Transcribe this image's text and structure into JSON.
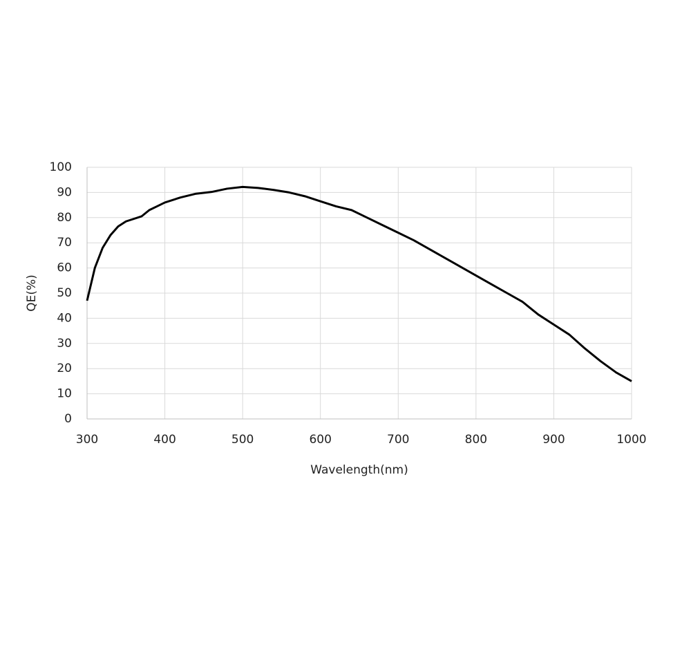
{
  "chart_data": {
    "type": "line",
    "xlabel": "Wavelength(nm)",
    "ylabel": "QE(%)",
    "x": [
      300,
      310,
      320,
      330,
      340,
      350,
      360,
      370,
      380,
      390,
      400,
      420,
      440,
      460,
      480,
      500,
      520,
      540,
      560,
      580,
      600,
      620,
      640,
      660,
      680,
      700,
      720,
      740,
      760,
      780,
      800,
      820,
      840,
      860,
      880,
      900,
      920,
      940,
      960,
      980,
      1000
    ],
    "series": [
      {
        "color": "#000000",
        "values": [
          47,
          60,
          68,
          73,
          76.5,
          78.5,
          79.5,
          80.5,
          83,
          84.5,
          86,
          88,
          89.5,
          90.2,
          91.5,
          92.2,
          91.8,
          91,
          90,
          88.5,
          86.5,
          84.5,
          83,
          80,
          77,
          74,
          71,
          67.5,
          64,
          60.5,
          57,
          53.5,
          50,
          46.5,
          41.5,
          37.5,
          33.5,
          28,
          23,
          18.5,
          15
        ]
      }
    ],
    "xlim": [
      300,
      1000
    ],
    "xticks": [
      300,
      400,
      500,
      600,
      700,
      800,
      900,
      1000
    ],
    "ylim": [
      0,
      100
    ],
    "yticks": [
      0,
      10,
      20,
      30,
      40,
      50,
      60,
      70,
      80,
      90,
      100
    ],
    "grid": true
  }
}
